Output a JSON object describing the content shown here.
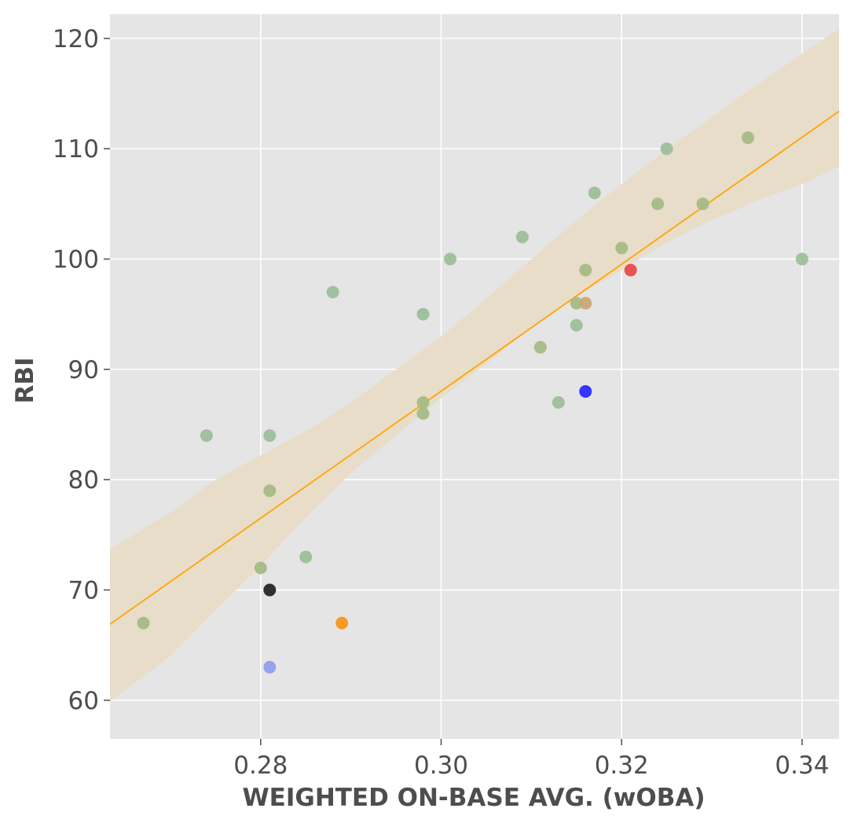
{
  "chart_data": {
    "type": "scatter",
    "xlabel": "WEIGHTED ON-BASE AVG. (wOBA)",
    "ylabel": "RBI",
    "xlim": [
      0.2633,
      0.3441
    ],
    "ylim": [
      56.5,
      122.2
    ],
    "xticks": [
      0.28,
      0.3,
      0.32,
      0.34
    ],
    "xtick_labels": [
      "0.28",
      "0.30",
      "0.32",
      "0.34"
    ],
    "yticks": [
      60,
      70,
      80,
      90,
      100,
      110,
      120
    ],
    "ytick_labels": [
      "60",
      "70",
      "80",
      "90",
      "100",
      "110",
      "120"
    ],
    "grid": true,
    "background": "#e5e5e5",
    "points": [
      {
        "x": 0.267,
        "y": 67,
        "color": "#a5bb86"
      },
      {
        "x": 0.274,
        "y": 84,
        "color": "#9dbf9a"
      },
      {
        "x": 0.28,
        "y": 72,
        "color": "#a5bb86"
      },
      {
        "x": 0.281,
        "y": 84,
        "color": "#9dbf9a"
      },
      {
        "x": 0.281,
        "y": 79,
        "color": "#a5bb86"
      },
      {
        "x": 0.285,
        "y": 73,
        "color": "#9dbf9a"
      },
      {
        "x": 0.288,
        "y": 97,
        "color": "#9dbf9a"
      },
      {
        "x": 0.298,
        "y": 95,
        "color": "#9dbf9a"
      },
      {
        "x": 0.298,
        "y": 87,
        "color": "#a5bb86"
      },
      {
        "x": 0.298,
        "y": 86,
        "color": "#a5bb86"
      },
      {
        "x": 0.301,
        "y": 100,
        "color": "#9dbf9a"
      },
      {
        "x": 0.309,
        "y": 102,
        "color": "#9dbf9a"
      },
      {
        "x": 0.311,
        "y": 92,
        "color": "#a5bb86"
      },
      {
        "x": 0.313,
        "y": 87,
        "color": "#9dbf9a"
      },
      {
        "x": 0.315,
        "y": 96,
        "color": "#a5bb86"
      },
      {
        "x": 0.315,
        "y": 94,
        "color": "#9dbf9a"
      },
      {
        "x": 0.316,
        "y": 99,
        "color": "#a5bb86"
      },
      {
        "x": 0.317,
        "y": 106,
        "color": "#9dbf9a"
      },
      {
        "x": 0.32,
        "y": 101,
        "color": "#a5bb86"
      },
      {
        "x": 0.324,
        "y": 105,
        "color": "#a5bb86"
      },
      {
        "x": 0.325,
        "y": 110,
        "color": "#9dbf9a"
      },
      {
        "x": 0.329,
        "y": 105,
        "color": "#a5bb86"
      },
      {
        "x": 0.334,
        "y": 111,
        "color": "#a5bb86"
      },
      {
        "x": 0.34,
        "y": 100,
        "color": "#9dbf9a"
      },
      {
        "x": 0.316,
        "y": 96,
        "color": "#c8a978"
      },
      {
        "x": 0.321,
        "y": 99,
        "color": "#e84a4a"
      },
      {
        "x": 0.316,
        "y": 88,
        "color": "#2b2bff"
      },
      {
        "x": 0.281,
        "y": 70,
        "color": "#262626"
      },
      {
        "x": 0.289,
        "y": 67,
        "color": "#f7961e"
      },
      {
        "x": 0.281,
        "y": 63,
        "color": "#909fee"
      }
    ],
    "regression_line": {
      "color": "#ffa500",
      "points": [
        [
          0.2633,
          66.9
        ],
        [
          0.3441,
          113.4
        ]
      ]
    },
    "confidence_band": {
      "color": "#e8dbc4",
      "upper": [
        [
          0.2633,
          73.7
        ],
        [
          0.27,
          77.0
        ],
        [
          0.275,
          80.0
        ],
        [
          0.28,
          82.2
        ],
        [
          0.285,
          84.4
        ],
        [
          0.29,
          87.0
        ],
        [
          0.295,
          90.0
        ],
        [
          0.3,
          93.0
        ],
        [
          0.305,
          96.4
        ],
        [
          0.31,
          100.0
        ],
        [
          0.315,
          103.5
        ],
        [
          0.32,
          106.8
        ],
        [
          0.325,
          109.9
        ],
        [
          0.33,
          112.9
        ],
        [
          0.335,
          115.8
        ],
        [
          0.34,
          118.6
        ],
        [
          0.3441,
          120.9
        ]
      ],
      "lower": [
        [
          0.2633,
          59.9
        ],
        [
          0.27,
          64.0
        ],
        [
          0.275,
          68.2
        ],
        [
          0.28,
          72.2
        ],
        [
          0.285,
          76.6
        ],
        [
          0.29,
          80.6
        ],
        [
          0.295,
          84.0
        ],
        [
          0.3,
          87.4
        ],
        [
          0.305,
          90.5
        ],
        [
          0.31,
          93.8
        ],
        [
          0.315,
          96.6
        ],
        [
          0.32,
          99.0
        ],
        [
          0.325,
          101.5
        ],
        [
          0.33,
          103.5
        ],
        [
          0.335,
          105.3
        ],
        [
          0.34,
          106.8
        ],
        [
          0.3441,
          108.4
        ]
      ]
    }
  }
}
